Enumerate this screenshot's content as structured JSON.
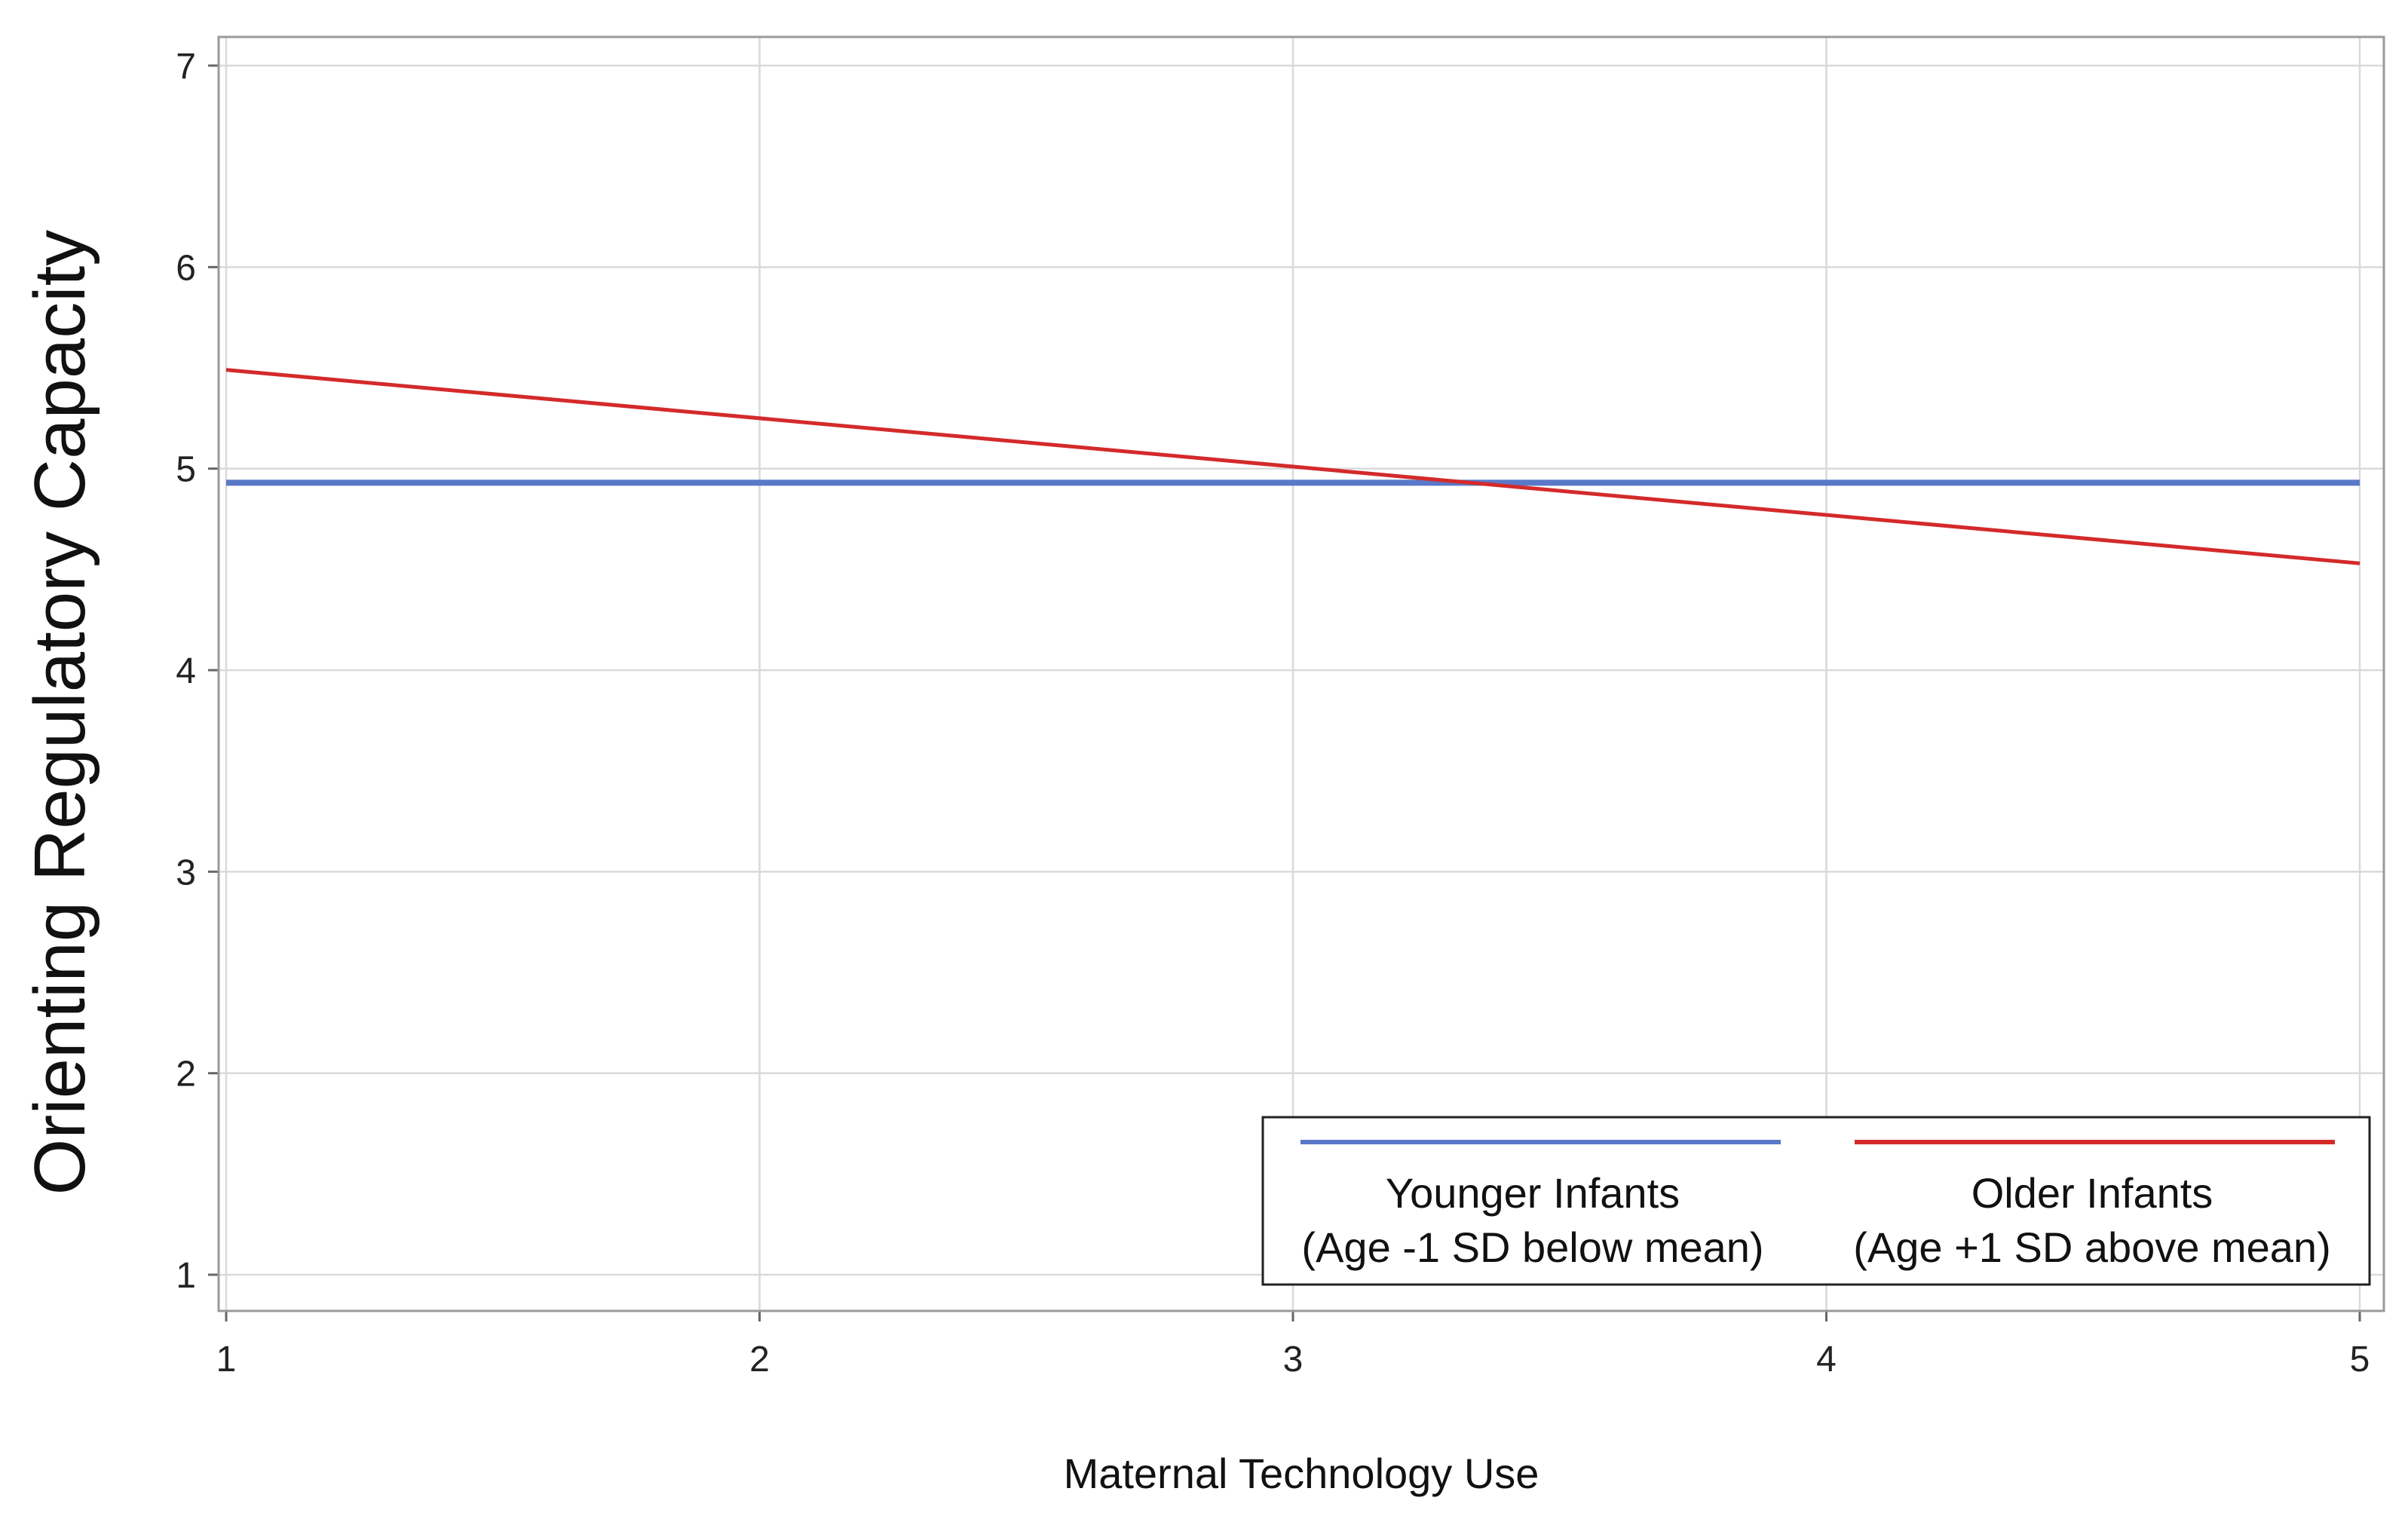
{
  "chart_data": {
    "type": "line",
    "title": "",
    "xlabel": "Maternal Technology Use",
    "ylabel": "Orienting Regulatory Capacity",
    "xlim": [
      1,
      5
    ],
    "ylim": [
      1,
      7
    ],
    "xticks": [
      1,
      2,
      3,
      4,
      5
    ],
    "yticks": [
      1,
      2,
      3,
      4,
      5,
      6,
      7
    ],
    "grid": true,
    "legend_position": "bottom-right",
    "series": [
      {
        "name": "Younger Infants",
        "legend_line1": "Younger Infants",
        "legend_line2": "(Age -1 SD below mean)",
        "color": "#5a78c8",
        "x": [
          1,
          5
        ],
        "y": [
          4.93,
          4.93
        ]
      },
      {
        "name": "Older Infants",
        "legend_line1": "Older Infants",
        "legend_line2": "(Age +1 SD above mean)",
        "color": "#d42a2a",
        "x": [
          1,
          5
        ],
        "y": [
          5.49,
          4.53
        ]
      }
    ]
  }
}
